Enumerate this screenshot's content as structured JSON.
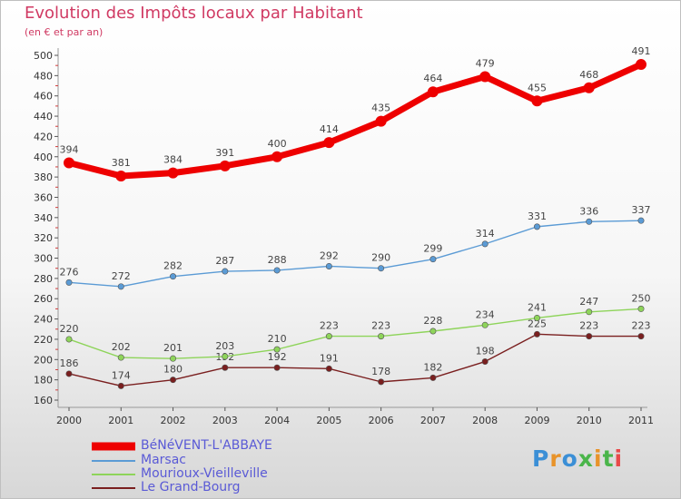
{
  "title": "Evolution des Impôts locaux par Habitant",
  "subtitle": "(en € et par an)",
  "logo_text": "Proxiti",
  "chart_data": {
    "type": "line",
    "title": "Evolution des Impôts locaux par Habitant",
    "subtitle": "(en € et par an)",
    "x": [
      "2000",
      "2001",
      "2002",
      "2003",
      "2004",
      "2005",
      "2006",
      "2007",
      "2008",
      "2009",
      "2010",
      "2011"
    ],
    "ylim": [
      160,
      500
    ],
    "yticks": [
      160,
      180,
      200,
      220,
      240,
      260,
      280,
      300,
      320,
      340,
      360,
      380,
      400,
      420,
      440,
      460,
      480,
      500
    ],
    "grid": false,
    "legend_position": "bottom-left",
    "series": [
      {
        "name": "BéNéVENT-L'ABBAYE",
        "color": "#ee0000",
        "values": [
          394,
          381,
          384,
          391,
          400,
          414,
          435,
          464,
          479,
          455,
          468,
          491
        ]
      },
      {
        "name": "Marsac",
        "color": "#5b9bd5",
        "values": [
          276,
          272,
          282,
          287,
          288,
          292,
          290,
          299,
          314,
          331,
          336,
          337
        ]
      },
      {
        "name": "Mourioux-Vieilleville",
        "color": "#8ed45a",
        "values": [
          220,
          202,
          201,
          203,
          210,
          223,
          223,
          228,
          234,
          241,
          247,
          250
        ]
      },
      {
        "name": "Le Grand-Bourg",
        "color": "#7a1f1f",
        "values": [
          186,
          174,
          180,
          192,
          192,
          191,
          178,
          182,
          198,
          225,
          223,
          223
        ]
      }
    ]
  }
}
